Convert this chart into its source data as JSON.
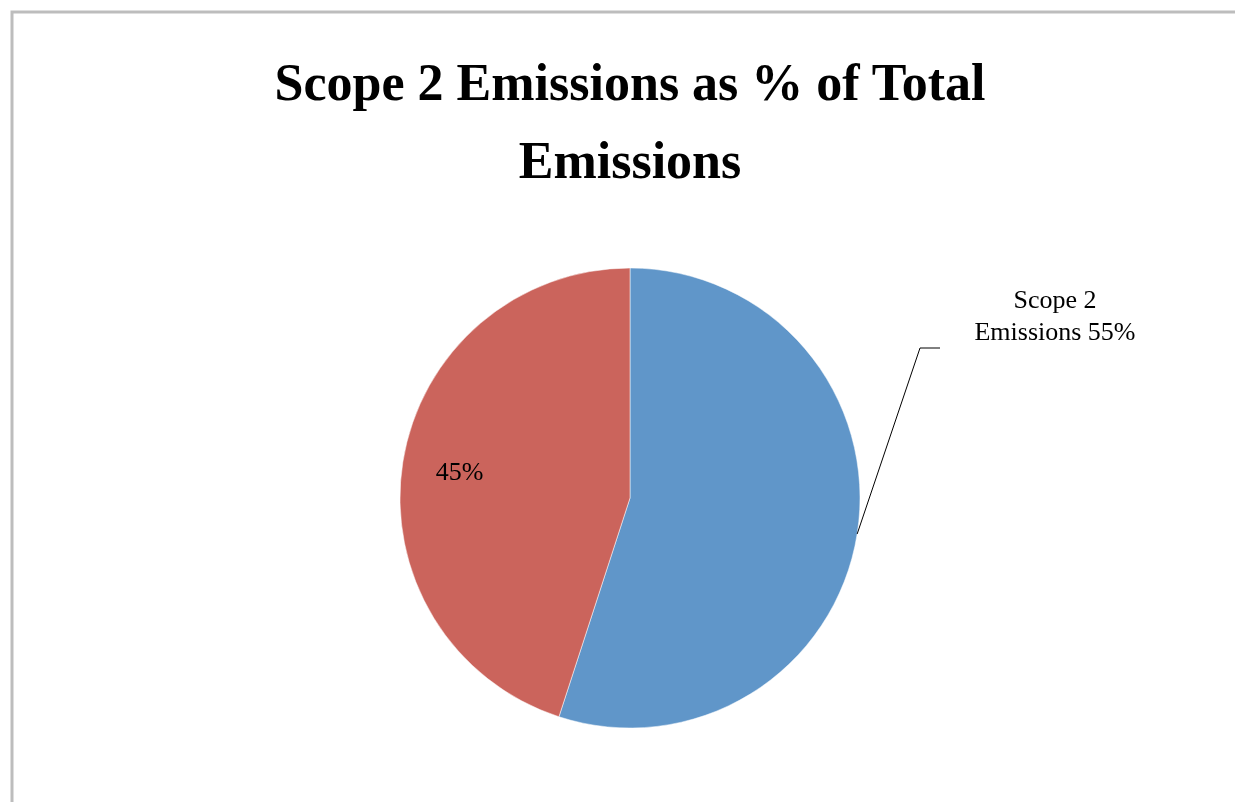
{
  "chart_data": {
    "type": "pie",
    "title": "Scope 2 Emissions as % of Total Emissions",
    "categories": [
      "Scope 2 Emissions",
      null
    ],
    "values": [
      55,
      45
    ],
    "colors": [
      "#6096c9",
      "#cb645c"
    ],
    "value_labels": [
      "55%",
      "45%"
    ]
  }
}
